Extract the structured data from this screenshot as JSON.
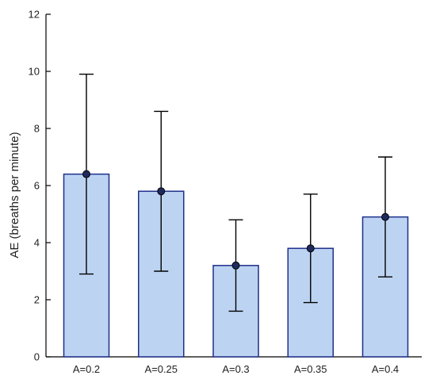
{
  "chart_data": {
    "type": "bar",
    "title": "",
    "xlabel": "",
    "ylabel": "AE (breaths per minute)",
    "categories": [
      "A=0.2",
      "A=0.25",
      "A=0.3",
      "A=0.35",
      "A=0.4"
    ],
    "values": [
      6.4,
      5.8,
      3.2,
      3.8,
      4.9
    ],
    "error_low": [
      2.9,
      3.0,
      1.6,
      1.9,
      2.8
    ],
    "error_high": [
      9.9,
      8.6,
      4.8,
      5.7,
      7.0
    ],
    "ylim": [
      0,
      12
    ],
    "yticks": [
      "0",
      "2",
      "4",
      "6",
      "8",
      "10",
      "12"
    ],
    "grid": false,
    "colors": {
      "bar_fill": "#bcd4f2",
      "bar_stroke": "#1f2f8a",
      "marker_fill": "#1f2a5c",
      "error_bar": "#000000",
      "axis": "#000000"
    }
  }
}
